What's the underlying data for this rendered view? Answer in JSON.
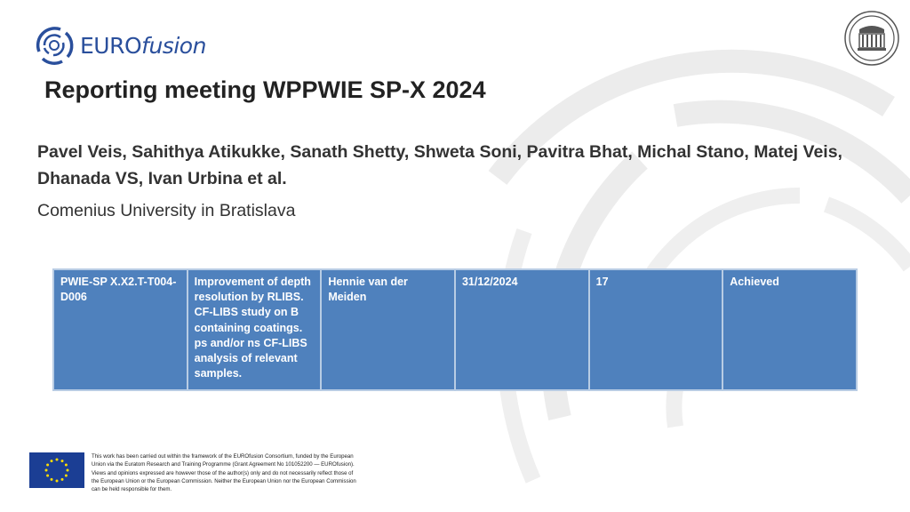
{
  "logo": {
    "brand_main": "EURO",
    "brand_italic": "fusion"
  },
  "title": "Reporting meeting WPPWIE SP-X 2024",
  "authors": "Pavel Veis, Sahithya Atikukke, Sanath Shetty, Shweta Soni, Pavitra Bhat, Michal Stano, Matej Veis, Dhanada VS, Ivan Urbina et al.",
  "institution": "Comenius University in Bratislava",
  "table": {
    "rows": [
      [
        "PWIE-SP X.X2.T-T004-D006",
        "Improvement of depth resolution by RLIBS. CF-LIBS study on B containing coatings. ps and/or ns CF-LIBS analysis of relevant samples.",
        "Hennie van der Meiden",
        "31/12/2024",
        "17",
        "Achieved"
      ]
    ]
  },
  "footer": {
    "disclaimer": "This work has been carried out within the framework of the EUROfusion Consortium, funded by the European Union via the Euratom Research and Training Programme (Grant Agreement No 101052200 — EUROfusion). Views and opinions expressed are however those of the author(s) only and do not necessarily reflect those of the European Union or the European Commission. Neither the European Union nor the European Commission can be held responsible for them."
  },
  "colors": {
    "table_fill": "#4f81bd",
    "brand": "#2a4f9c",
    "eu_blue": "#1b3e94",
    "eu_star": "#ffdd00"
  }
}
